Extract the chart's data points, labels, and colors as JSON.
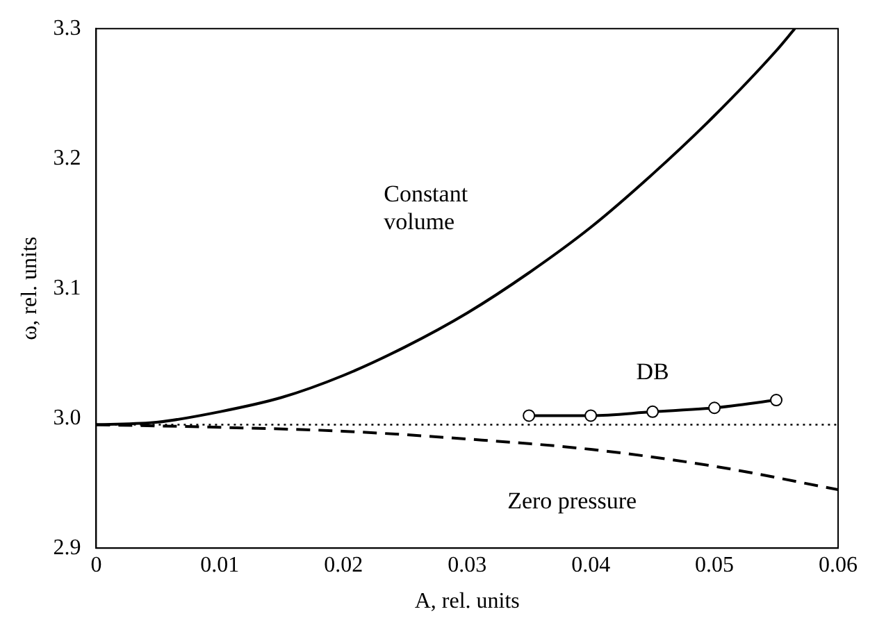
{
  "chart_data": {
    "type": "line",
    "xlabel": "A, rel. units",
    "ylabel": "ω, rel. units",
    "xlim": [
      0,
      0.06
    ],
    "xticks": [
      0,
      0.01,
      0.02,
      0.03,
      0.04,
      0.05,
      0.06
    ],
    "ylim": [
      2.9,
      3.3
    ],
    "yticks": [
      {
        "value": 2.9,
        "label": "2.9"
      },
      {
        "value": 3.0,
        "label": "3.0"
      },
      {
        "value": 3.1,
        "label": "3.1"
      },
      {
        "value": 3.2,
        "label": "3.2"
      },
      {
        "value": 3.3,
        "label": "3.3"
      }
    ],
    "grid": false,
    "legend": false,
    "series": [
      {
        "name": "Constant volume",
        "color": "#000000",
        "line_style": "solid",
        "marker": "none",
        "x": [
          0,
          0.005,
          0.01,
          0.015,
          0.02,
          0.025,
          0.03,
          0.035,
          0.04,
          0.045,
          0.05,
          0.055,
          0.0565
        ],
        "values": [
          2.995,
          2.997,
          3.005,
          3.016,
          3.033,
          3.055,
          3.081,
          3.112,
          3.147,
          3.188,
          3.233,
          3.283,
          3.3
        ]
      },
      {
        "name": "Zero pressure",
        "color": "#000000",
        "line_style": "dashed",
        "marker": "none",
        "x": [
          0,
          0.01,
          0.02,
          0.03,
          0.04,
          0.05,
          0.06
        ],
        "values": [
          2.995,
          2.993,
          2.99,
          2.984,
          2.976,
          2.963,
          2.945
        ]
      },
      {
        "name": "DB",
        "color": "#000000",
        "line_style": "solid",
        "marker": "circle",
        "x": [
          0.035,
          0.04,
          0.045,
          0.05,
          0.055
        ],
        "values": [
          3.002,
          3.002,
          3.005,
          3.008,
          3.014
        ]
      }
    ],
    "ref_lines": [
      {
        "axis": "y",
        "value": 2.995,
        "line_style": "dotted",
        "color": "#000000"
      }
    ]
  }
}
